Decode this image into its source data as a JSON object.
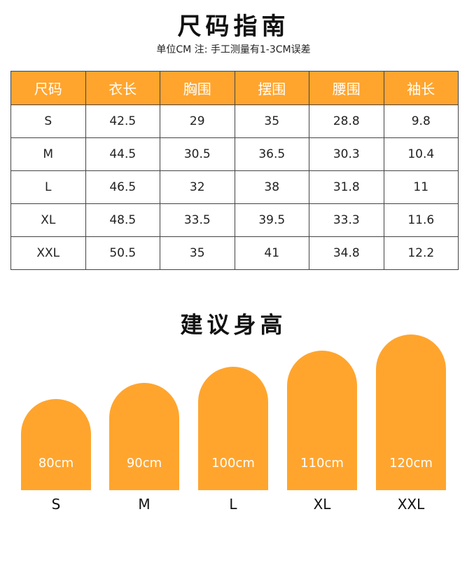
{
  "header": {
    "title": "尺码指南",
    "subtitle": "单位CM  注: 手工测量有1-3CM误差"
  },
  "table": {
    "columns": [
      "尺码",
      "衣长",
      "胸围",
      "摆围",
      "腰围",
      "袖长"
    ],
    "rows": [
      [
        "S",
        "42.5",
        "29",
        "35",
        "28.8",
        "9.8"
      ],
      [
        "M",
        "44.5",
        "30.5",
        "36.5",
        "30.3",
        "10.4"
      ],
      [
        "L",
        "46.5",
        "32",
        "38",
        "31.8",
        "11"
      ],
      [
        "XL",
        "48.5",
        "33.5",
        "39.5",
        "33.3",
        "11.6"
      ],
      [
        "XXL",
        "50.5",
        "35",
        "41",
        "34.8",
        "12.2"
      ]
    ]
  },
  "heights": {
    "title": "建议身高",
    "accent_color": "#FFA52E",
    "items": [
      {
        "size": "S",
        "height_label": "80cm",
        "height_cm": 80
      },
      {
        "size": "M",
        "height_label": "90cm",
        "height_cm": 90
      },
      {
        "size": "L",
        "height_label": "100cm",
        "height_cm": 100
      },
      {
        "size": "XL",
        "height_label": "110cm",
        "height_cm": 110
      },
      {
        "size": "XXL",
        "height_label": "120cm",
        "height_cm": 120
      }
    ]
  }
}
